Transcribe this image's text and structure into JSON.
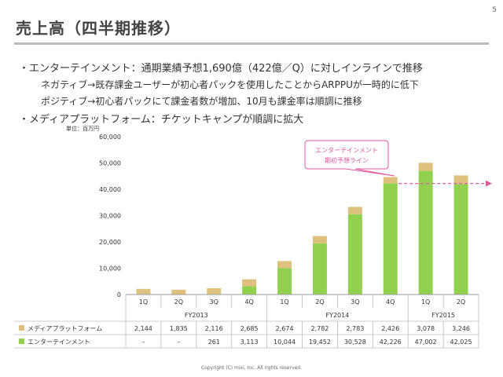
{
  "page": {
    "number": "5",
    "title": "売上高（四半期推移）",
    "footer": "Copyright (C) mixi, Inc. All rights reserved."
  },
  "bullets": {
    "b1": "・エンターテインメント：通期業績予想1,690億（422億／Q）に対しインラインで推移",
    "sub1": "ネガティブ→既存課金ユーザーが初心者パックを使用したことからARPPUが一時的に低下",
    "sub2": "ポジティブ→初心者パックにて課金者数が増加、10月も課金率は順調に推移",
    "b2": "・メディアプラットフォーム：チケットキャンプが順調に拡大"
  },
  "chart_data": {
    "type": "bar",
    "stacked": true,
    "unit_label": "単位：百万円",
    "categories": [
      "1Q",
      "2Q",
      "3Q",
      "4Q",
      "1Q",
      "2Q",
      "3Q",
      "4Q",
      "1Q",
      "2Q"
    ],
    "fiscal_years": [
      {
        "label": "FY2013",
        "span": 4
      },
      {
        "label": "FY2014",
        "span": 4
      },
      {
        "label": "FY2015",
        "span": 2
      }
    ],
    "series": [
      {
        "name": "エンターテインメント",
        "color": "#92d050",
        "values": [
          0,
          0,
          261,
          3113,
          10044,
          19452,
          30528,
          42226,
          47002,
          42025
        ],
        "display": [
          "–",
          "–",
          "261",
          "3,113",
          "10,044",
          "19,452",
          "30,528",
          "42,226",
          "47,002",
          "42,025"
        ]
      },
      {
        "name": "メディアプラットフォーム",
        "color": "#dec17f",
        "values": [
          2144,
          1835,
          2116,
          2685,
          2674,
          2782,
          2783,
          2426,
          3078,
          3246
        ],
        "display": [
          "2,144",
          "1,835",
          "2,116",
          "2,685",
          "2,674",
          "2,782",
          "2,783",
          "2,426",
          "3,078",
          "3,246"
        ]
      }
    ],
    "y_ticks": [
      "0",
      "10,000",
      "20,000",
      "30,000",
      "40,000",
      "50,000",
      "60,000"
    ],
    "ylim": [
      0,
      60000
    ],
    "annotation": {
      "text_line1": "エンターテインメント",
      "text_line2": "期初予想ライン",
      "value": 42200,
      "color": "#e05aa0"
    }
  }
}
